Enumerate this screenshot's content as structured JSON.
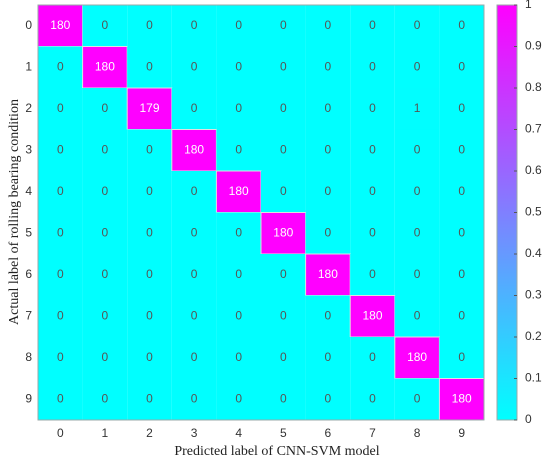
{
  "chart_data": {
    "type": "heatmap",
    "x_label": "Predicted label of CNN-SVM model",
    "y_label": "Actual label of rolling bearing condition",
    "x_categories": [
      "0",
      "1",
      "2",
      "3",
      "4",
      "5",
      "6",
      "7",
      "8",
      "9"
    ],
    "y_categories": [
      "0",
      "1",
      "2",
      "3",
      "4",
      "5",
      "6",
      "7",
      "8",
      "9"
    ],
    "values": [
      [
        180,
        0,
        0,
        0,
        0,
        0,
        0,
        0,
        0,
        0
      ],
      [
        0,
        180,
        0,
        0,
        0,
        0,
        0,
        0,
        0,
        0
      ],
      [
        0,
        0,
        179,
        0,
        0,
        0,
        0,
        0,
        1,
        0
      ],
      [
        0,
        0,
        0,
        180,
        0,
        0,
        0,
        0,
        0,
        0
      ],
      [
        0,
        0,
        0,
        0,
        180,
        0,
        0,
        0,
        0,
        0
      ],
      [
        0,
        0,
        0,
        0,
        0,
        180,
        0,
        0,
        0,
        0
      ],
      [
        0,
        0,
        0,
        0,
        0,
        0,
        180,
        0,
        0,
        0
      ],
      [
        0,
        0,
        0,
        0,
        0,
        0,
        0,
        180,
        0,
        0
      ],
      [
        0,
        0,
        0,
        0,
        0,
        0,
        0,
        0,
        180,
        0
      ],
      [
        0,
        0,
        0,
        0,
        0,
        0,
        0,
        0,
        0,
        180
      ]
    ],
    "colormap": [
      "#00ffff",
      "#ff00ff"
    ],
    "colorbar_lim": [
      0,
      1
    ],
    "colorbar_ticks": [
      0,
      0.1,
      0.2,
      0.3,
      0.4,
      0.5,
      0.6,
      0.7,
      0.8,
      0.9,
      1
    ]
  }
}
